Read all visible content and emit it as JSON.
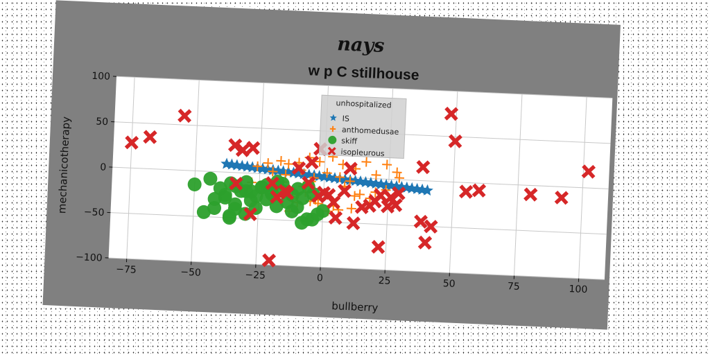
{
  "suptitle": "nays",
  "chart_data": {
    "type": "scatter",
    "title": "w p C stillhouse",
    "xlabel": "bullberry",
    "ylabel": "mechanicotherapy",
    "xlim": [
      -82,
      110
    ],
    "ylim": [
      -100,
      100
    ],
    "xticks": [
      -75,
      -50,
      -25,
      0,
      25,
      50,
      75,
      100
    ],
    "yticks": [
      -100,
      -50,
      0,
      50,
      100
    ],
    "xtick_labels": [
      "−75",
      "−50",
      "−25",
      "0",
      "25",
      "50",
      "75",
      "100"
    ],
    "ytick_labels": [
      "−100",
      "−50",
      "0",
      "50",
      "100"
    ],
    "grid": true,
    "legend": {
      "title": "unhospitalized",
      "placement": "top-center"
    },
    "series": [
      {
        "name": "IS",
        "marker": "star",
        "color": "#1f77b4",
        "x": [
          -38,
          -36,
          -34,
          -32,
          -30,
          -28,
          -26,
          -24,
          -22,
          -20,
          -18,
          -16,
          -14,
          -12,
          -10,
          -8,
          -6,
          -4,
          -2,
          0,
          2,
          4,
          6,
          8,
          10,
          12,
          14,
          16,
          18,
          20,
          22,
          24,
          26,
          28,
          30,
          32,
          34,
          36,
          38,
          40
        ],
        "y": [
          9,
          8.5,
          8,
          7.5,
          7,
          6.5,
          6,
          5.5,
          5,
          4.5,
          4,
          3.5,
          3,
          2.5,
          2,
          1.5,
          1,
          0.5,
          0,
          -0.5,
          -1,
          -1.5,
          -2,
          -2.5,
          -3,
          -3.5,
          -4,
          -4.5,
          -5,
          -5.5,
          -6,
          -6.5,
          -7,
          -7.5,
          -8,
          -8.5,
          -9,
          -9.5,
          -10,
          -10.5
        ]
      },
      {
        "name": "anthomedusae",
        "marker": "plus",
        "color": "#ff7f0e",
        "x": [
          -26,
          -22,
          -17,
          -14,
          -10,
          -6,
          -2,
          3,
          7,
          12,
          16,
          20,
          24,
          28,
          -20,
          -15,
          -9,
          -4,
          1,
          6,
          10,
          -24,
          -18,
          -12,
          -7,
          -2,
          4,
          -12,
          -5,
          -28,
          -16,
          -8,
          12,
          20,
          -10,
          -5,
          2,
          11,
          18,
          24,
          29,
          -3,
          8,
          14,
          6,
          -13
        ],
        "y": [
          8,
          12,
          15,
          12,
          14,
          20,
          16,
          22,
          14,
          10,
          18,
          4,
          16,
          8,
          3,
          0,
          6,
          -2,
          4,
          0,
          -4,
          -20,
          -14,
          -26,
          -18,
          -30,
          -32,
          -24,
          -6,
          -10,
          -8,
          -12,
          -20,
          -15,
          -30,
          -28,
          -38,
          -34,
          -22,
          -12,
          2,
          -26,
          -10,
          -18,
          -36,
          -40
        ]
      },
      {
        "name": "skiff",
        "marker": "circle",
        "color": "#2ca02c",
        "x": [
          -50,
          -44,
          -40,
          -38,
          -36,
          -34,
          -32,
          -30,
          -28,
          -26,
          -24,
          -22,
          -20,
          -18,
          -16,
          -14,
          -12,
          -10,
          -8,
          -6,
          -46,
          -42,
          -36,
          -30,
          -26,
          -22,
          -18,
          -12,
          -6,
          -2,
          -42,
          -38,
          -34,
          -28,
          -24,
          -20,
          -16,
          -10,
          -4,
          0,
          -36,
          -34,
          -30,
          -8,
          -4
        ],
        "y": [
          -15,
          -8,
          -18,
          -28,
          -12,
          -35,
          -20,
          -10,
          -30,
          -25,
          -15,
          -12,
          -20,
          -8,
          -18,
          -30,
          -22,
          -15,
          -25,
          -12,
          -45,
          -40,
          -50,
          -45,
          -38,
          -28,
          -35,
          -40,
          -48,
          -42,
          -30,
          -25,
          -40,
          -20,
          -15,
          -22,
          -10,
          -35,
          -20,
          -38,
          -48,
          -15,
          -20,
          -52,
          -48
        ]
      },
      {
        "name": "isopleurous",
        "marker": "x",
        "color": "#d62728",
        "x": [
          -75,
          -68,
          -55,
          -35,
          -32,
          -28,
          -14,
          -2,
          -5,
          -10,
          -15,
          -20,
          -28,
          -34,
          -20,
          0,
          8,
          2,
          5,
          12,
          18,
          20,
          22,
          28,
          38,
          48,
          50,
          55,
          60,
          80,
          92,
          102,
          26,
          42,
          38,
          40,
          -18,
          15,
          22,
          29,
          -6,
          -2,
          4,
          25,
          10
        ],
        "y": [
          28,
          35,
          60,
          30,
          25,
          28,
          -20,
          30,
          15,
          8,
          -18,
          -10,
          -45,
          -12,
          -95,
          -18,
          -15,
          -20,
          -45,
          -50,
          -30,
          -25,
          -75,
          -28,
          15,
          75,
          45,
          -10,
          -8,
          -10,
          -12,
          18,
          -20,
          -50,
          -45,
          -68,
          -25,
          -32,
          -18,
          -15,
          -8,
          -22,
          -28,
          -30,
          10
        ]
      }
    ]
  }
}
